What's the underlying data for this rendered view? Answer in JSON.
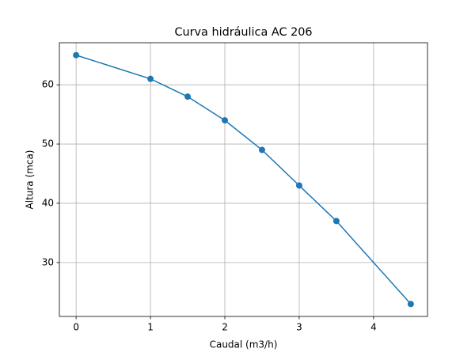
{
  "chart_data": {
    "type": "line",
    "title": "Curva hidráulica AC 206",
    "x_label": "Caudal (m3/h)",
    "y_label": "Altura (mca)",
    "x": [
      0,
      1,
      1.5,
      2,
      2.5,
      3,
      3.5,
      4.5
    ],
    "values": [
      65,
      61,
      58,
      54,
      49,
      43,
      37,
      23
    ],
    "color": "#1f77b4",
    "marker": "o",
    "xlim": [
      -0.225,
      4.725
    ],
    "ylim": [
      20.9,
      67.1
    ],
    "xticks": [
      0,
      1,
      2,
      3,
      4
    ],
    "yticks": [
      30,
      40,
      50,
      60
    ],
    "grid": true
  }
}
